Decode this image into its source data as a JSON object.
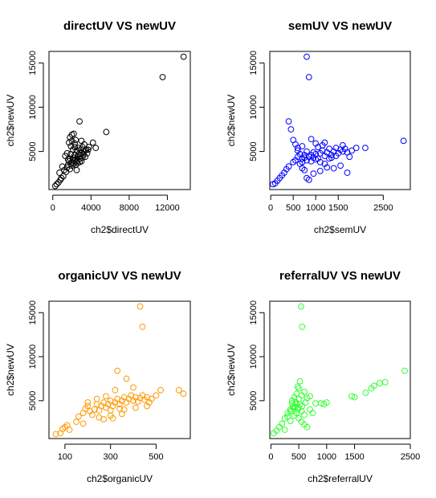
{
  "chart_data": [
    {
      "type": "scatter",
      "title": "directUV VS newUV",
      "xlabel": "ch2$directUV",
      "ylabel": "ch2$newUV",
      "color": "#000000",
      "xlim": [
        -400,
        14400
      ],
      "ylim": [
        700,
        16300
      ],
      "xticks": [
        0,
        4000,
        8000,
        12000
      ],
      "yticks": [
        5000,
        10000,
        15000
      ],
      "grid": false,
      "points": [
        [
          250,
          1100
        ],
        [
          400,
          1300
        ],
        [
          600,
          1500
        ],
        [
          800,
          1800
        ],
        [
          900,
          2000
        ],
        [
          1100,
          2200
        ],
        [
          700,
          2600
        ],
        [
          1200,
          2900
        ],
        [
          1000,
          3300
        ],
        [
          1300,
          4500
        ],
        [
          1500,
          4800
        ],
        [
          1700,
          6000
        ],
        [
          1800,
          6600
        ],
        [
          2000,
          6900
        ],
        [
          2200,
          7000
        ],
        [
          2400,
          6300
        ],
        [
          2800,
          8400
        ],
        [
          3000,
          6200
        ],
        [
          3300,
          5800
        ],
        [
          3500,
          5200
        ],
        [
          3800,
          5500
        ],
        [
          4200,
          6000
        ],
        [
          4500,
          5400
        ],
        [
          5600,
          7200
        ],
        [
          1500,
          3200
        ],
        [
          1600,
          3500
        ],
        [
          1700,
          3900
        ],
        [
          1800,
          4200
        ],
        [
          1900,
          3600
        ],
        [
          2000,
          3800
        ],
        [
          2100,
          4000
        ],
        [
          2200,
          4300
        ],
        [
          2300,
          4600
        ],
        [
          2400,
          4100
        ],
        [
          2500,
          3900
        ],
        [
          2600,
          4400
        ],
        [
          2700,
          4700
        ],
        [
          2800,
          4200
        ],
        [
          2900,
          4500
        ],
        [
          3000,
          4800
        ],
        [
          3100,
          4300
        ],
        [
          3200,
          4600
        ],
        [
          3300,
          5000
        ],
        [
          3400,
          4400
        ],
        [
          1600,
          4100
        ],
        [
          1900,
          4700
        ],
        [
          2100,
          5200
        ],
        [
          2300,
          5500
        ],
        [
          2500,
          5100
        ],
        [
          2700,
          5400
        ],
        [
          2900,
          5200
        ],
        [
          3100,
          5500
        ],
        [
          2000,
          3400
        ],
        [
          2200,
          3600
        ],
        [
          2400,
          3500
        ],
        [
          2600,
          3700
        ],
        [
          2800,
          3800
        ],
        [
          3000,
          3900
        ],
        [
          1800,
          3000
        ],
        [
          2500,
          2900
        ],
        [
          1400,
          2700
        ],
        [
          3600,
          4800
        ],
        [
          3700,
          5200
        ],
        [
          2300,
          5900
        ],
        [
          2000,
          6200
        ],
        [
          1900,
          5600
        ],
        [
          11500,
          13400
        ],
        [
          13700,
          15700
        ]
      ]
    },
    {
      "type": "scatter",
      "title": "semUV VS newUV",
      "xlabel": "ch2$semUV",
      "ylabel": "ch2$newUV",
      "color": "#0000ff",
      "xlim": [
        -20,
        3100
      ],
      "ylim": [
        700,
        16300
      ],
      "xticks": [
        0,
        500,
        1000,
        1500,
        2500
      ],
      "xtick_labels": [
        "0",
        "500",
        "1000",
        "1500",
        "2500"
      ],
      "yticks": [
        5000,
        10000,
        15000
      ],
      "grid": false,
      "points": [
        [
          50,
          1300
        ],
        [
          100,
          1400
        ],
        [
          150,
          1700
        ],
        [
          200,
          2000
        ],
        [
          250,
          2300
        ],
        [
          300,
          2600
        ],
        [
          350,
          3000
        ],
        [
          400,
          3300
        ],
        [
          400,
          8400
        ],
        [
          450,
          7500
        ],
        [
          500,
          6300
        ],
        [
          550,
          5800
        ],
        [
          600,
          5100
        ],
        [
          650,
          4700
        ],
        [
          700,
          4200
        ],
        [
          750,
          4600
        ],
        [
          800,
          5000
        ],
        [
          850,
          4400
        ],
        [
          900,
          3900
        ],
        [
          950,
          4300
        ],
        [
          1000,
          4700
        ],
        [
          1050,
          4200
        ],
        [
          1100,
          4800
        ],
        [
          1150,
          5100
        ],
        [
          1200,
          4500
        ],
        [
          1250,
          4900
        ],
        [
          1300,
          5300
        ],
        [
          1350,
          4600
        ],
        [
          1400,
          5000
        ],
        [
          1450,
          5400
        ],
        [
          1500,
          4800
        ],
        [
          1550,
          5200
        ],
        [
          1600,
          5000
        ],
        [
          1650,
          5300
        ],
        [
          1700,
          4900
        ],
        [
          1800,
          5100
        ],
        [
          1900,
          5400
        ],
        [
          2100,
          5400
        ],
        [
          2950,
          6200
        ],
        [
          500,
          3800
        ],
        [
          550,
          4000
        ],
        [
          600,
          4400
        ],
        [
          650,
          3600
        ],
        [
          700,
          3800
        ],
        [
          800,
          4000
        ],
        [
          900,
          4600
        ],
        [
          1000,
          4100
        ],
        [
          1100,
          3800
        ],
        [
          1200,
          3600
        ],
        [
          1300,
          4200
        ],
        [
          700,
          3100
        ],
        [
          750,
          2900
        ],
        [
          800,
          2000
        ],
        [
          850,
          1800
        ],
        [
          950,
          2500
        ],
        [
          1100,
          2800
        ],
        [
          1250,
          3200
        ],
        [
          1400,
          3100
        ],
        [
          1550,
          3400
        ],
        [
          1700,
          2600
        ],
        [
          900,
          6400
        ],
        [
          1000,
          5900
        ],
        [
          1200,
          6000
        ],
        [
          1600,
          5700
        ],
        [
          800,
          15700
        ],
        [
          850,
          13400
        ],
        [
          600,
          5400
        ],
        [
          700,
          5600
        ],
        [
          1050,
          5500
        ],
        [
          1150,
          5700
        ],
        [
          750,
          4300
        ],
        [
          950,
          4900
        ],
        [
          1350,
          4300
        ],
        [
          1450,
          4500
        ],
        [
          1750,
          4400
        ]
      ]
    },
    {
      "type": "scatter",
      "title": "organicUV VS newUV",
      "xlabel": "ch2$organicUV",
      "ylabel": "ch2$newUV",
      "color": "#ff9900",
      "xlim": [
        30,
        650
      ],
      "ylim": [
        700,
        16300
      ],
      "xticks": [
        100,
        300,
        500
      ],
      "yticks": [
        5000,
        10000,
        15000
      ],
      "grid": false,
      "points": [
        [
          60,
          1200
        ],
        [
          80,
          1300
        ],
        [
          90,
          1800
        ],
        [
          100,
          2000
        ],
        [
          110,
          2200
        ],
        [
          120,
          1700
        ],
        [
          150,
          2600
        ],
        [
          160,
          3200
        ],
        [
          180,
          3600
        ],
        [
          190,
          4100
        ],
        [
          200,
          4400
        ],
        [
          210,
          3800
        ],
        [
          220,
          3400
        ],
        [
          230,
          4000
        ],
        [
          240,
          4600
        ],
        [
          250,
          3900
        ],
        [
          260,
          4400
        ],
        [
          270,
          4800
        ],
        [
          280,
          4200
        ],
        [
          290,
          4600
        ],
        [
          300,
          5000
        ],
        [
          310,
          4400
        ],
        [
          320,
          4800
        ],
        [
          330,
          5200
        ],
        [
          340,
          4600
        ],
        [
          350,
          5000
        ],
        [
          360,
          5400
        ],
        [
          370,
          4800
        ],
        [
          380,
          5200
        ],
        [
          390,
          5600
        ],
        [
          400,
          5000
        ],
        [
          410,
          5400
        ],
        [
          420,
          4900
        ],
        [
          430,
          5300
        ],
        [
          440,
          5600
        ],
        [
          450,
          5100
        ],
        [
          460,
          5400
        ],
        [
          470,
          4800
        ],
        [
          480,
          5200
        ],
        [
          500,
          5600
        ],
        [
          520,
          6200
        ],
        [
          600,
          6200
        ],
        [
          620,
          5800
        ],
        [
          430,
          15700
        ],
        [
          440,
          13400
        ],
        [
          330,
          8400
        ],
        [
          370,
          7500
        ],
        [
          250,
          3100
        ],
        [
          300,
          3300
        ],
        [
          350,
          3500
        ],
        [
          280,
          5500
        ],
        [
          320,
          6200
        ],
        [
          400,
          6500
        ],
        [
          200,
          4800
        ],
        [
          240,
          5200
        ],
        [
          360,
          4000
        ],
        [
          410,
          4200
        ],
        [
          460,
          4400
        ],
        [
          300,
          3900
        ],
        [
          340,
          4100
        ],
        [
          270,
          2900
        ],
        [
          310,
          3000
        ],
        [
          180,
          2400
        ]
      ]
    },
    {
      "type": "scatter",
      "title": "referralUV VS newUV",
      "xlabel": "ch2$referralUV",
      "ylabel": "ch2$newUV",
      "color": "#33ff33",
      "xlim": [
        -20,
        2500
      ],
      "ylim": [
        700,
        16300
      ],
      "xticks": [
        0,
        500,
        1000,
        1500,
        2500
      ],
      "xtick_labels": [
        "0",
        "500",
        "1000",
        "1500",
        "2500"
      ],
      "yticks": [
        5000,
        10000,
        15000
      ],
      "grid": false,
      "points": [
        [
          50,
          1300
        ],
        [
          100,
          1600
        ],
        [
          150,
          2000
        ],
        [
          200,
          2400
        ],
        [
          250,
          3000
        ],
        [
          300,
          3600
        ],
        [
          350,
          4000
        ],
        [
          400,
          4400
        ],
        [
          450,
          4800
        ],
        [
          500,
          5200
        ],
        [
          550,
          5600
        ],
        [
          600,
          6000
        ],
        [
          300,
          3200
        ],
        [
          350,
          3800
        ],
        [
          400,
          4200
        ],
        [
          450,
          4600
        ],
        [
          500,
          4200
        ],
        [
          550,
          3800
        ],
        [
          600,
          3400
        ],
        [
          380,
          5000
        ],
        [
          420,
          5400
        ],
        [
          460,
          5800
        ],
        [
          500,
          6400
        ],
        [
          520,
          7200
        ],
        [
          480,
          6600
        ],
        [
          560,
          4400
        ],
        [
          620,
          4800
        ],
        [
          700,
          4000
        ],
        [
          750,
          3600
        ],
        [
          800,
          4700
        ],
        [
          900,
          4700
        ],
        [
          950,
          4600
        ],
        [
          1000,
          4800
        ],
        [
          1450,
          5500
        ],
        [
          1500,
          5400
        ],
        [
          1700,
          5900
        ],
        [
          1800,
          6400
        ],
        [
          1850,
          6700
        ],
        [
          1950,
          7000
        ],
        [
          2050,
          7100
        ],
        [
          2400,
          8400
        ],
        [
          540,
          15700
        ],
        [
          560,
          13400
        ],
        [
          420,
          3300
        ],
        [
          460,
          3600
        ],
        [
          500,
          3000
        ],
        [
          550,
          2600
        ],
        [
          600,
          2300
        ],
        [
          650,
          2000
        ],
        [
          250,
          1700
        ],
        [
          350,
          2700
        ],
        [
          650,
          5300
        ],
        [
          700,
          5500
        ],
        [
          480,
          4000
        ],
        [
          520,
          4600
        ],
        [
          440,
          4300
        ],
        [
          380,
          4700
        ]
      ]
    }
  ]
}
